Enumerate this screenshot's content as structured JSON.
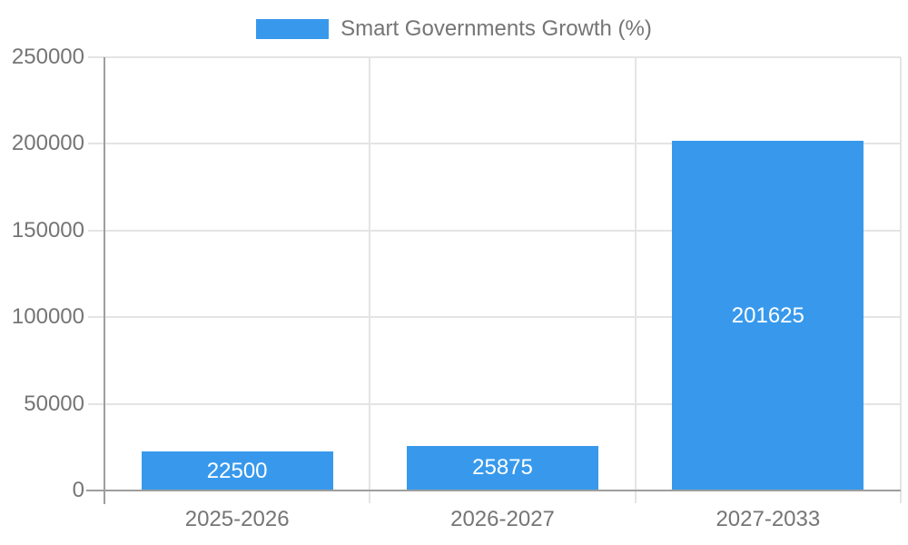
{
  "legend": {
    "label": "Smart Governments Growth (%)"
  },
  "chart_data": {
    "type": "bar",
    "title": "",
    "series_name": "Smart Governments Growth (%)",
    "categories": [
      "2025-2026",
      "2026-2027",
      "2027-2033"
    ],
    "values": [
      22500,
      25875,
      201625
    ],
    "bar_labels": [
      "22500",
      "25875",
      "201625"
    ],
    "xlabel": "",
    "ylabel": "",
    "ylim": [
      0,
      250000
    ],
    "y_ticks": [
      0,
      50000,
      100000,
      150000,
      200000,
      250000
    ],
    "y_tick_labels": [
      "0",
      "50000",
      "100000",
      "150000",
      "200000",
      "250000"
    ],
    "legend_position": "top",
    "grid": true,
    "colors": {
      "bar": "#3899ec",
      "bar_label_text": "#ffffff",
      "axis_line": "#9e9e9e",
      "gridline": "#e4e4e4",
      "tick_label_text": "#757575",
      "legend_text": "#757575",
      "background": "#ffffff"
    }
  }
}
